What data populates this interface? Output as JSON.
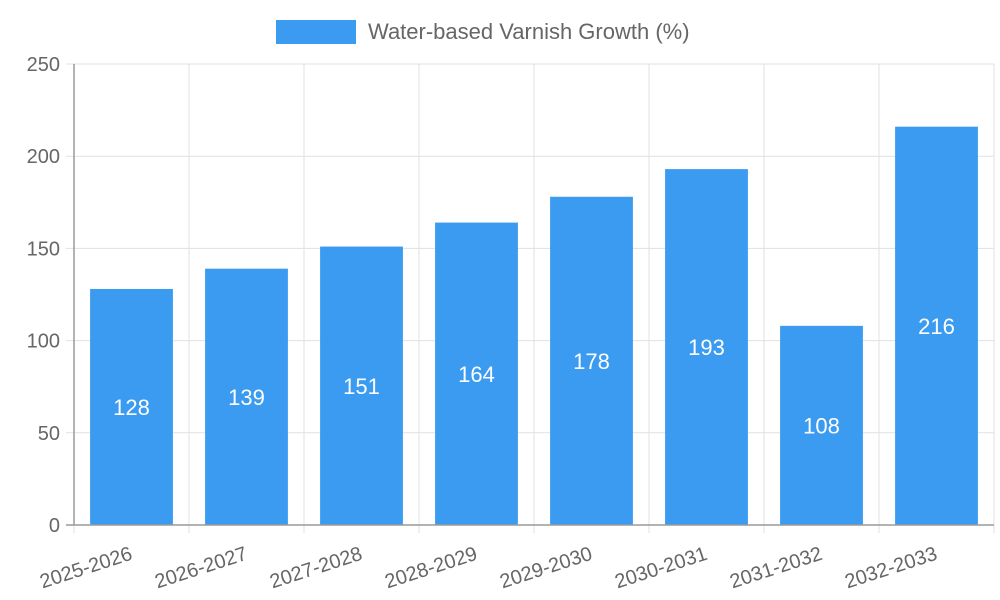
{
  "chart_data": {
    "type": "bar",
    "title": "",
    "xlabel": "",
    "ylabel": "",
    "categories": [
      "2025-2026",
      "2026-2027",
      "2027-2028",
      "2028-2029",
      "2029-2030",
      "2030-2031",
      "2031-2032",
      "2032-2033"
    ],
    "series": [
      {
        "name": "Water-based Varnish Growth (%)",
        "values": [
          128,
          139,
          151,
          164,
          178,
          193,
          108,
          216
        ],
        "color": "#3a9bf0"
      }
    ],
    "ylim": [
      0,
      250
    ],
    "yticks": [
      0,
      50,
      100,
      150,
      200,
      250
    ],
    "grid": true,
    "legend_position": "top-center"
  }
}
